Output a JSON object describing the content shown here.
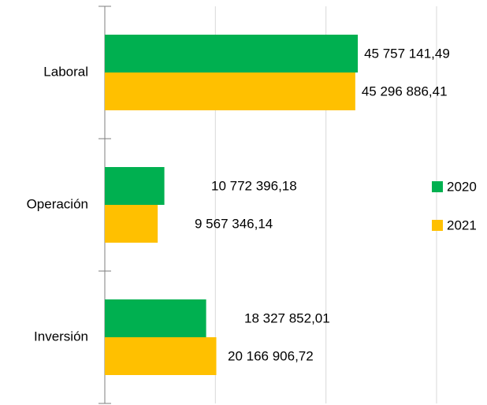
{
  "chart_data": {
    "type": "bar",
    "orientation": "horizontal",
    "categories": [
      "Laboral",
      "Operación",
      "Inversión"
    ],
    "series": [
      {
        "name": "2020",
        "color": "#00b050",
        "values": [
          45757141.49,
          10772396.18,
          18327852.01
        ],
        "value_labels": [
          "45 757 141,49",
          "10 772 396,18",
          "18 327 852,01"
        ]
      },
      {
        "name": "2021",
        "color": "#ffc000",
        "values": [
          45296886.41,
          9567346.14,
          20166906.72
        ],
        "value_labels": [
          "45 296 886,41",
          "9 567 346,14",
          "20 166 906,72"
        ]
      }
    ],
    "xlim": [
      0,
      60000000
    ],
    "xticks": [
      0,
      20000000,
      40000000,
      60000000
    ],
    "grid": true,
    "legend": "right"
  }
}
